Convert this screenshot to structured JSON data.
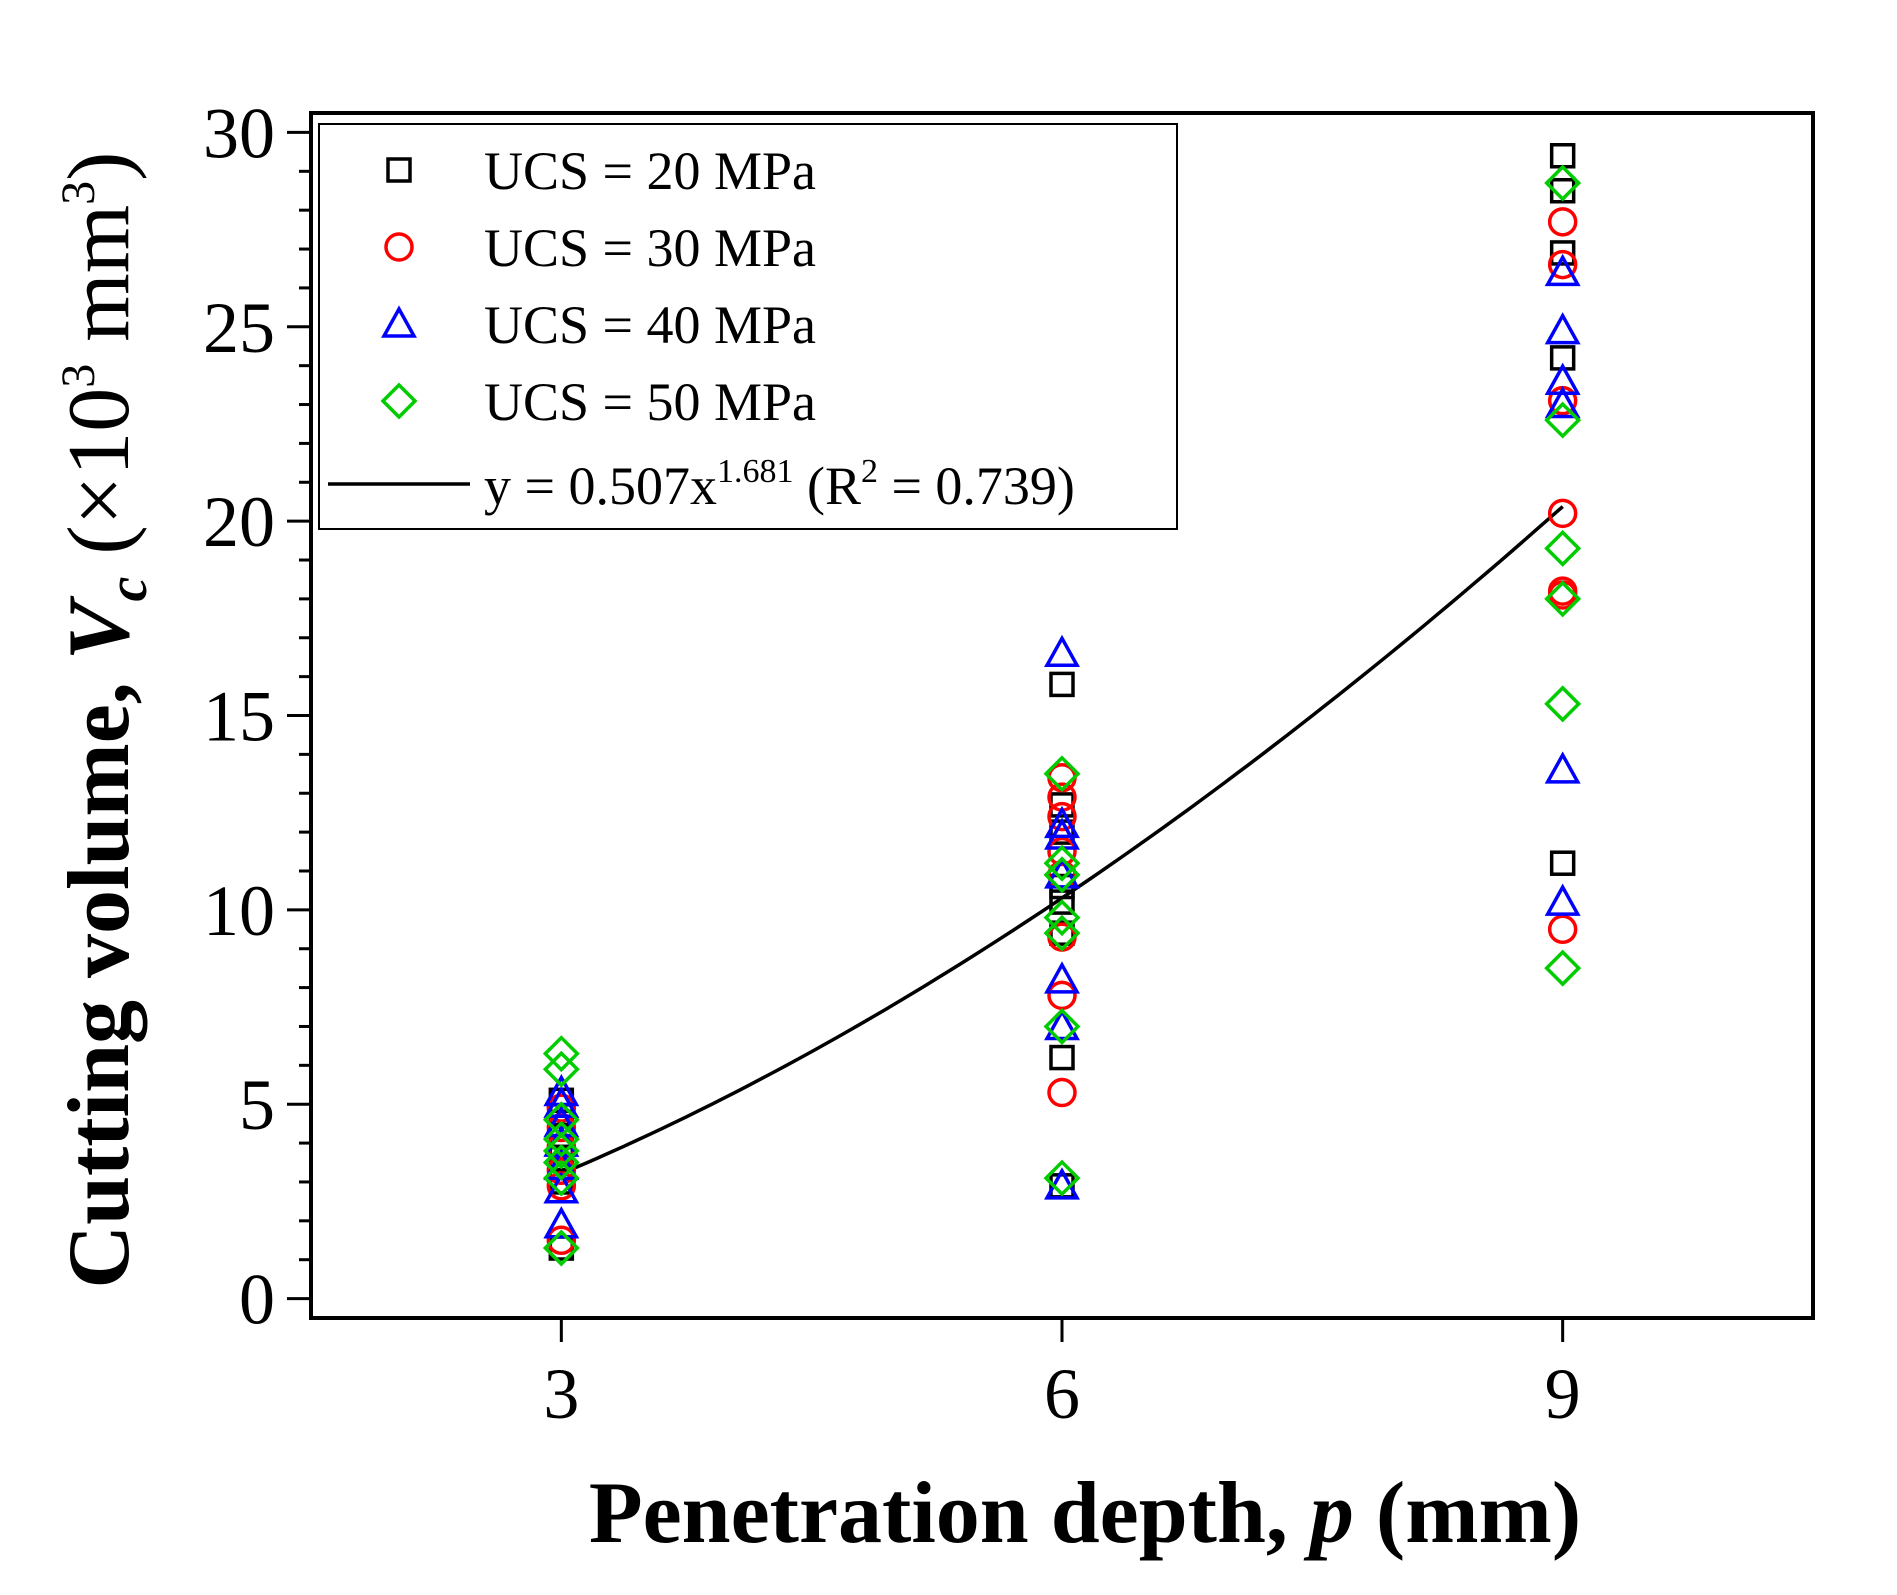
{
  "chart_data": {
    "type": "scatter",
    "xlabel": "Penetration depth, p (mm)",
    "xlabel_parts": {
      "pre": "Penetration depth, ",
      "var": "p",
      "post": " (mm)"
    },
    "ylabel": "Cutting volume, Vc (×10³ mm³)",
    "ylabel_parts": {
      "pre": "Cutting volume, ",
      "var": "V",
      "sub": "c",
      "unit_pre": " (×10",
      "sup1": "3",
      "unit_mid": " mm",
      "sup2": "3",
      "unit_post": ")"
    },
    "xlim": [
      1.5,
      10.5
    ],
    "ylim": [
      -0.5,
      30.5
    ],
    "xticks": [
      3,
      6,
      9
    ],
    "yticks": [
      0,
      5,
      10,
      15,
      20,
      25,
      30
    ],
    "y_minor_step": 1,
    "legend_position": "top-left",
    "series": [
      {
        "name": "UCS = 20 MPa",
        "marker": "square",
        "color": "#000000",
        "points": [
          [
            3,
            1.3
          ],
          [
            3,
            3.0
          ],
          [
            3,
            3.6
          ],
          [
            3,
            4.2
          ],
          [
            3,
            4.7
          ],
          [
            3,
            5.1
          ],
          [
            6,
            2.9
          ],
          [
            6,
            6.2
          ],
          [
            6,
            9.4
          ],
          [
            6,
            10.2
          ],
          [
            6,
            10.6
          ],
          [
            6,
            12.0
          ],
          [
            6,
            12.7
          ],
          [
            6,
            15.8
          ],
          [
            9,
            11.2
          ],
          [
            9,
            24.2
          ],
          [
            9,
            26.9
          ],
          [
            9,
            28.5
          ],
          [
            9,
            29.4
          ]
        ]
      },
      {
        "name": "UCS = 30 MPa",
        "marker": "circle",
        "color": "#ff0000",
        "points": [
          [
            3,
            1.5
          ],
          [
            3,
            2.9
          ],
          [
            3,
            3.3
          ],
          [
            3,
            3.9
          ],
          [
            3,
            4.4
          ],
          [
            3,
            4.9
          ],
          [
            6,
            5.3
          ],
          [
            6,
            7.8
          ],
          [
            6,
            9.3
          ],
          [
            6,
            10.9
          ],
          [
            6,
            11.5
          ],
          [
            6,
            12.4
          ],
          [
            6,
            12.9
          ],
          [
            6,
            13.4
          ],
          [
            9,
            9.5
          ],
          [
            9,
            18.1
          ],
          [
            9,
            18.2
          ],
          [
            9,
            20.2
          ],
          [
            9,
            23.1
          ],
          [
            9,
            26.6
          ],
          [
            9,
            27.7
          ]
        ]
      },
      {
        "name": "UCS = 40 MPa",
        "marker": "triangle",
        "color": "#0000ff",
        "points": [
          [
            3,
            1.9
          ],
          [
            3,
            2.8
          ],
          [
            3,
            3.4
          ],
          [
            3,
            4.0
          ],
          [
            3,
            4.5
          ],
          [
            3,
            5.0
          ],
          [
            3,
            5.3
          ],
          [
            6,
            2.9
          ],
          [
            6,
            7.0
          ],
          [
            6,
            8.2
          ],
          [
            6,
            10.9
          ],
          [
            6,
            11.9
          ],
          [
            6,
            12.2
          ],
          [
            6,
            16.6
          ],
          [
            9,
            10.2
          ],
          [
            9,
            13.6
          ],
          [
            9,
            23.0
          ],
          [
            9,
            23.6
          ],
          [
            9,
            24.9
          ],
          [
            9,
            26.4
          ]
        ]
      },
      {
        "name": "UCS = 50 MPa",
        "marker": "diamond",
        "color": "#00cc00",
        "points": [
          [
            3,
            1.3
          ],
          [
            3,
            3.1
          ],
          [
            3,
            3.5
          ],
          [
            3,
            3.8
          ],
          [
            3,
            4.1
          ],
          [
            3,
            4.6
          ],
          [
            3,
            5.9
          ],
          [
            3,
            6.3
          ],
          [
            6,
            3.1
          ],
          [
            6,
            7.0
          ],
          [
            6,
            9.4
          ],
          [
            6,
            9.8
          ],
          [
            6,
            10.9
          ],
          [
            6,
            11.2
          ],
          [
            6,
            13.5
          ],
          [
            9,
            8.5
          ],
          [
            9,
            15.3
          ],
          [
            9,
            18.0
          ],
          [
            9,
            19.3
          ],
          [
            9,
            22.6
          ],
          [
            9,
            28.7
          ]
        ]
      }
    ],
    "fit": {
      "name": "y = 0.507x1.681 (R2 = 0.739)",
      "label_parts": {
        "a": "y = 0.507x",
        "sup_a": "1.681",
        "b": " (R",
        "sup_b": "2",
        "c": " = 0.739)"
      },
      "coef": 0.507,
      "exponent": 1.681,
      "x_range": [
        3,
        9
      ],
      "color": "#000000"
    }
  }
}
